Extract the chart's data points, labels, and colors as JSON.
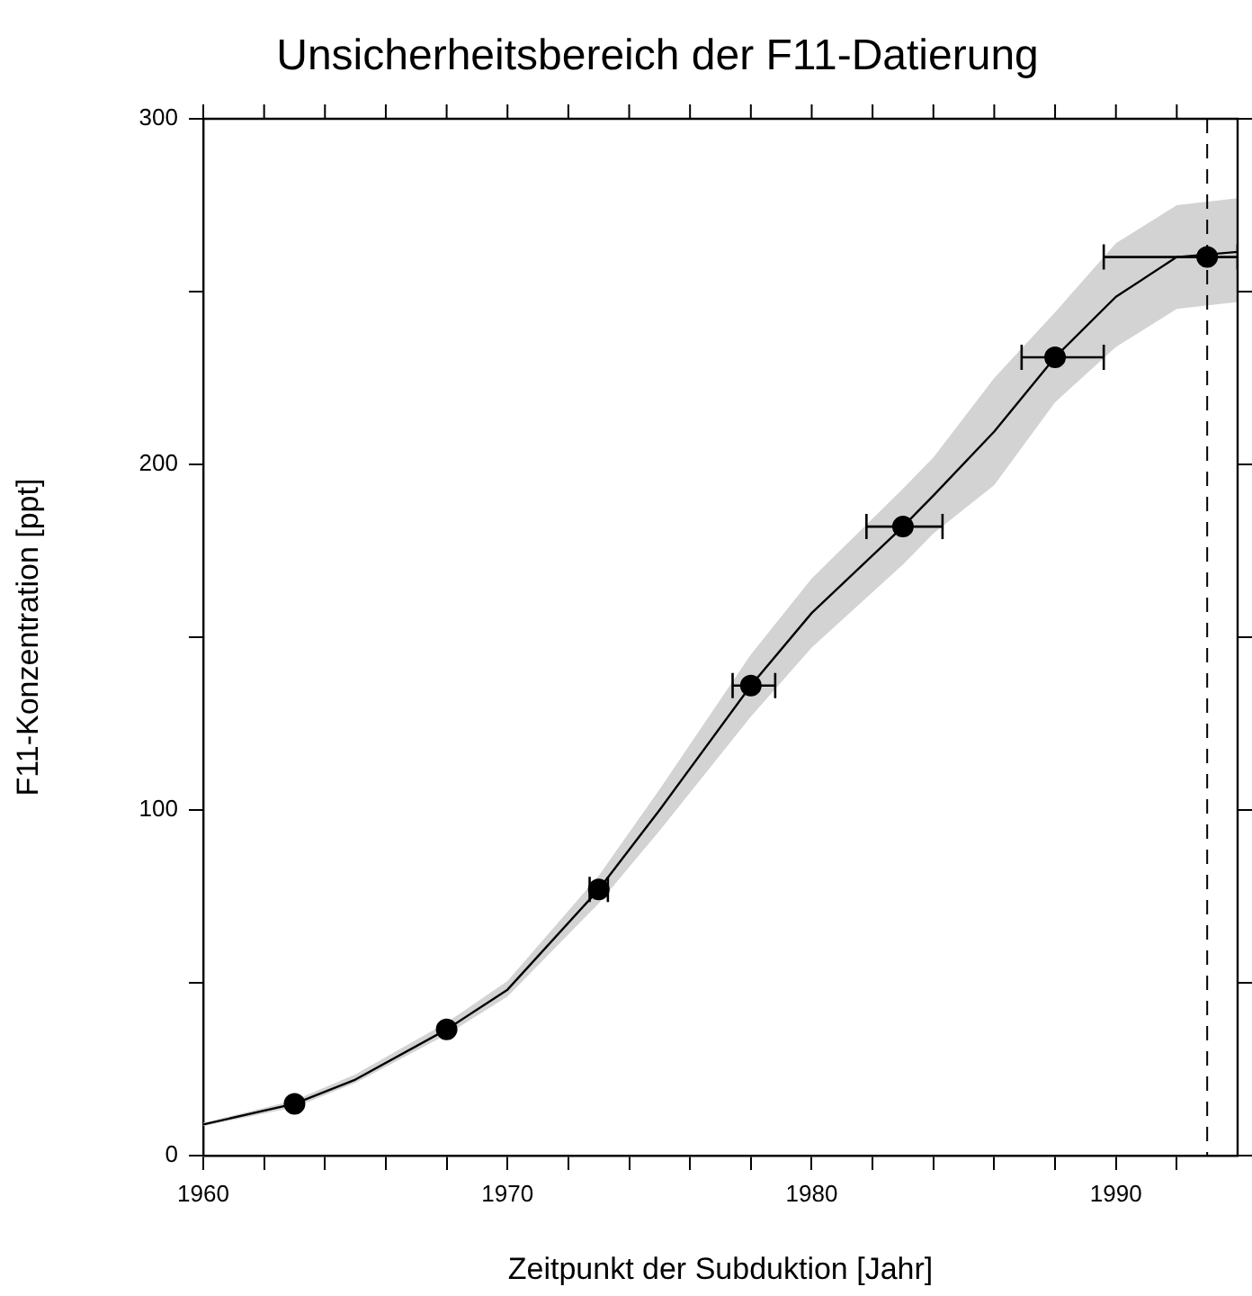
{
  "chart_data": {
    "type": "line",
    "title": "Unsicherheitsbereich der F11-Datierung",
    "xlabel": "Zeitpunkt der Subduktion [Jahr]",
    "ylabel": "F11-Konzentration [ppt]",
    "xlim": [
      1960,
      1994
    ],
    "ylim": [
      0,
      300
    ],
    "xticks": [
      1960,
      {
        "value": 1962,
        "label": null
      },
      {
        "value": 1964,
        "label": null
      },
      {
        "value": 1966,
        "label": null
      },
      {
        "value": 1968,
        "label": null
      },
      1970,
      {
        "value": 1972,
        "label": null
      },
      {
        "value": 1974,
        "label": null
      },
      {
        "value": 1976,
        "label": null
      },
      {
        "value": 1978,
        "label": null
      },
      1980,
      {
        "value": 1982,
        "label": null
      },
      {
        "value": 1984,
        "label": null
      },
      {
        "value": 1986,
        "label": null
      },
      {
        "value": 1988,
        "label": null
      },
      1990,
      {
        "value": 1992,
        "label": null
      }
    ],
    "yticks": [
      0,
      {
        "value": 50,
        "label": null
      },
      100,
      {
        "value": 150,
        "label": null
      },
      200,
      {
        "value": 250,
        "label": null
      },
      300
    ],
    "series": [
      {
        "type": "line",
        "color": "#000000",
        "x": [
          1960,
          1963,
          1965,
          1968,
          1970,
          1973,
          1975,
          1978,
          1980,
          1983,
          1984,
          1986,
          1988,
          1990,
          1992,
          1994
        ],
        "values": [
          9,
          15,
          22,
          36.5,
          48,
          77,
          100,
          136,
          157,
          182,
          191,
          209.5,
          231,
          248.5,
          260,
          261.5
        ],
        "lower": [
          8.5,
          14,
          21,
          35,
          46,
          73,
          94,
          127,
          147,
          171,
          180,
          194,
          218,
          234,
          245,
          247
        ],
        "upper": [
          9.5,
          16,
          23.5,
          38.5,
          50.5,
          81,
          106,
          145,
          167,
          193,
          202,
          225,
          244,
          264,
          275,
          277
        ]
      },
      {
        "type": "scatter",
        "color": "#000000",
        "marker": "circle",
        "x": [
          1963,
          1968,
          1973,
          1978,
          1983,
          1988,
          1993
        ],
        "values": [
          15,
          36.5,
          77,
          136,
          182,
          231,
          260
        ],
        "xerrors": [
          null,
          null,
          [
            1972.7,
            1973.3
          ],
          [
            1977.4,
            1978.8
          ],
          [
            1981.8,
            1984.3
          ],
          [
            1986.9,
            1989.6
          ],
          [
            1989.6,
            1994
          ]
        ]
      }
    ],
    "ref_lines": [
      {
        "axis": "x",
        "value": 1993,
        "line_style": "dashed",
        "color": "#000000"
      }
    ]
  }
}
